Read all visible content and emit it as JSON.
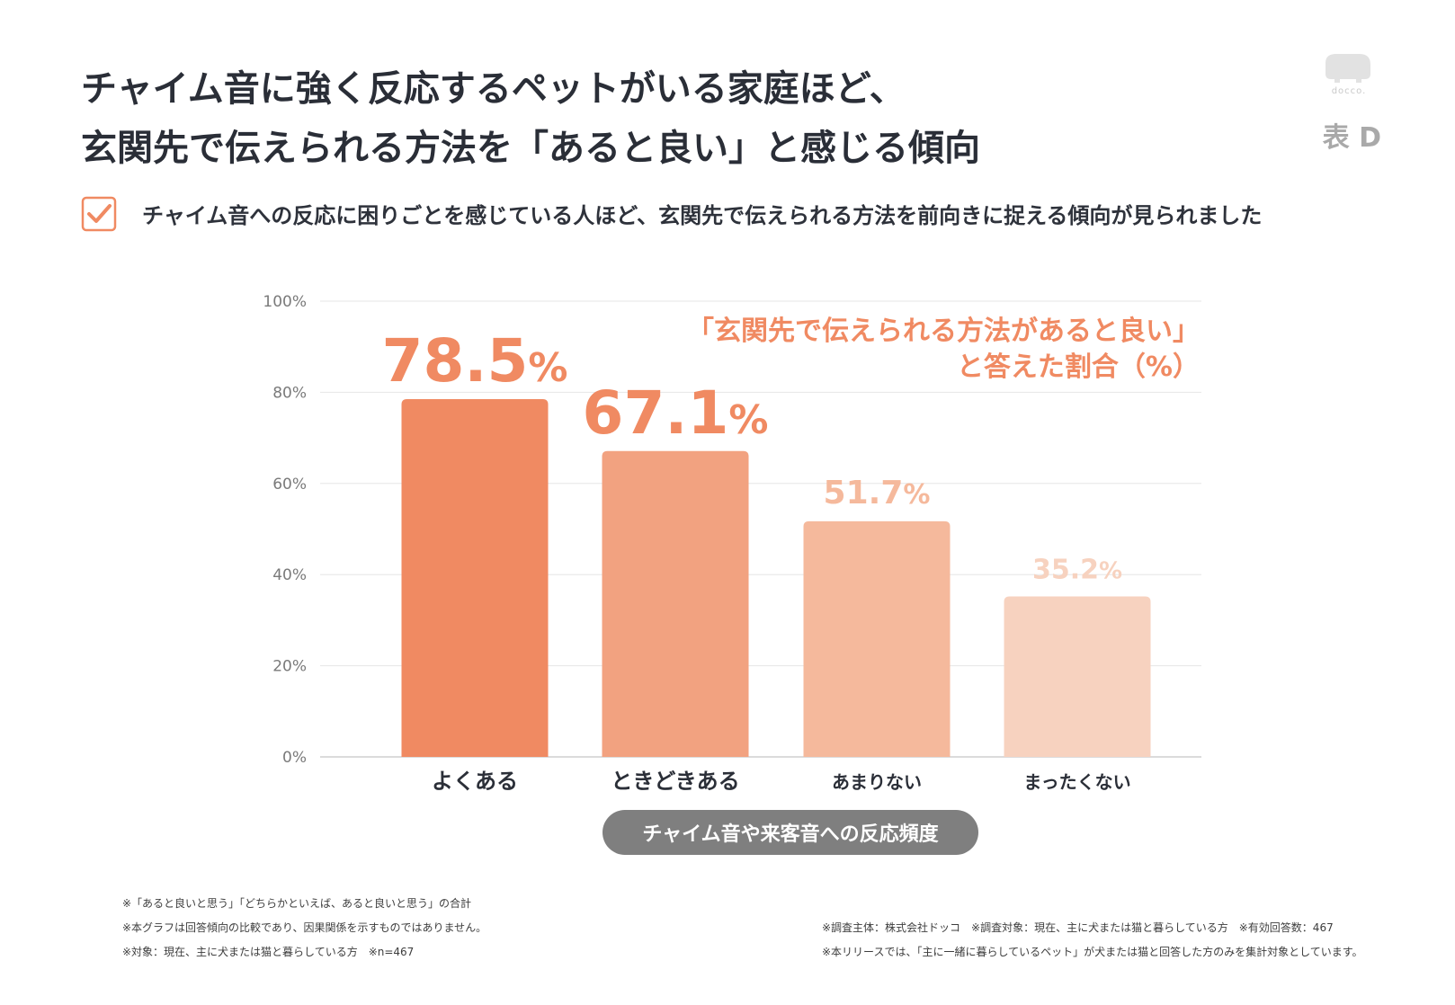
{
  "header": {
    "title_line1": "チャイム音に強く反応するペットがいる家庭ほど、",
    "title_line2": "玄関先で伝えられる方法を「あると良い」と感じる傾向",
    "table_label": "表 D",
    "logo_text": "docco."
  },
  "summary": {
    "text": "チャイム音への反応に困りごとを感じている人ほど、玄関先で伝えられる方法を前向きに捉える傾向が見られました"
  },
  "chart_data": {
    "type": "bar",
    "title_line1": "「玄関先で伝えられる方法があると良い」",
    "title_line2": "と答えた割合（%）",
    "xlabel": "チャイム音や来客音への反応頻度",
    "ylabel": "",
    "categories": [
      "よくある",
      "ときどきある",
      "あまりない",
      "まったくない"
    ],
    "values": [
      78.5,
      67.1,
      51.7,
      35.2
    ],
    "value_labels": [
      "78.5",
      "67.1",
      "51.7",
      "35.2"
    ],
    "value_suffix": "%",
    "yticks": [
      "0%",
      "20%",
      "40%",
      "60%",
      "80%",
      "100%"
    ],
    "ylim": [
      0,
      100
    ],
    "grid": true,
    "bar_colors": [
      "#f08a62",
      "#f2a280",
      "#f5b99c",
      "#f7d2bf"
    ],
    "accent_color": "#f08a62"
  },
  "footnotes": {
    "left": [
      "※「あると良いと思う」「どちらかといえば、あると良いと思う」の合計",
      "※本グラフは回答傾向の比較であり、因果関係を示すものではありません。",
      "※対象：現在、主に犬または猫と暮らしている方　※n=467"
    ],
    "right": [
      "※調査主体：株式会社ドッコ　※調査対象：現在、主に犬または猫と暮らしている方　※有効回答数：467",
      "※本リリースでは、「主に一緒に暮らしているペット」が犬または猫と回答した方のみを集計対象としています。"
    ]
  }
}
